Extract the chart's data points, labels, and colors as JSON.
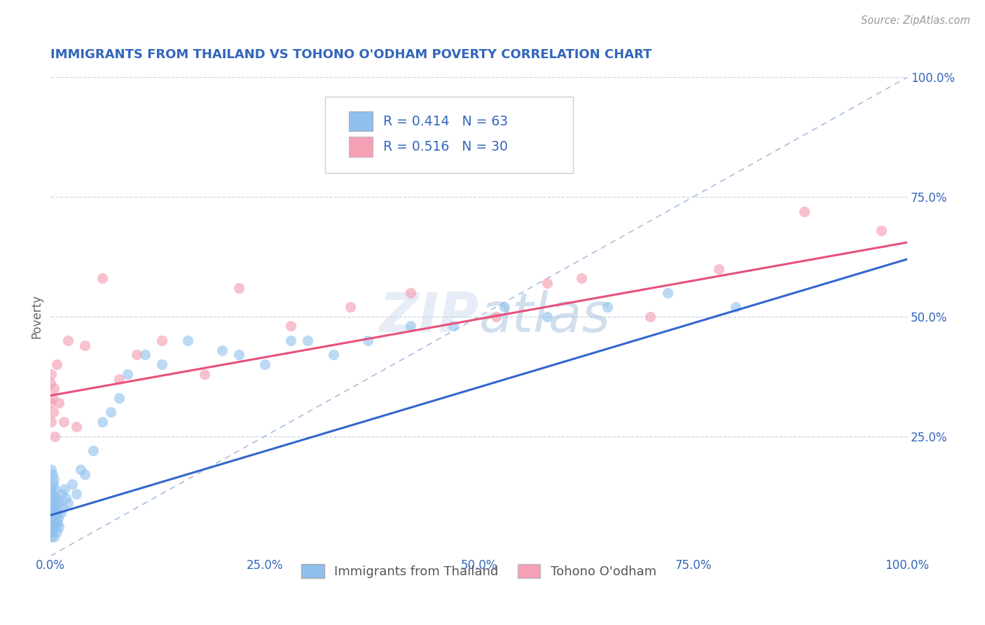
{
  "title": "IMMIGRANTS FROM THAILAND VS TOHONO O'ODHAM POVERTY CORRELATION CHART",
  "source": "Source: ZipAtlas.com",
  "ylabel": "Poverty",
  "xlim": [
    0.0,
    1.0
  ],
  "ylim": [
    0.0,
    1.0
  ],
  "x_tick_labels": [
    "0.0%",
    "25.0%",
    "50.0%",
    "75.0%",
    "100.0%"
  ],
  "x_tick_vals": [
    0.0,
    0.25,
    0.5,
    0.75,
    1.0
  ],
  "y_tick_labels": [
    "25.0%",
    "50.0%",
    "75.0%",
    "100.0%"
  ],
  "y_tick_vals": [
    0.25,
    0.5,
    0.75,
    1.0
  ],
  "legend_label1": "Immigrants from Thailand",
  "legend_label2": "Tohono O'odham",
  "R1": 0.414,
  "N1": 63,
  "R2": 0.516,
  "N2": 30,
  "color1": "#90C0EE",
  "color2": "#F5A0B5",
  "line_color1": "#3366CC",
  "line_color2": "#E8507A",
  "diagonal_color": "#AABEDD",
  "background_color": "#FFFFFF",
  "title_color": "#3366BB",
  "source_color": "#999999",
  "scatter1_x": [
    0.0,
    0.0,
    0.0,
    0.001,
    0.001,
    0.001,
    0.001,
    0.001,
    0.002,
    0.002,
    0.002,
    0.002,
    0.003,
    0.003,
    0.003,
    0.004,
    0.004,
    0.004,
    0.004,
    0.005,
    0.005,
    0.005,
    0.006,
    0.006,
    0.007,
    0.007,
    0.008,
    0.008,
    0.009,
    0.01,
    0.01,
    0.012,
    0.013,
    0.014,
    0.016,
    0.018,
    0.02,
    0.025,
    0.03,
    0.035,
    0.04,
    0.05,
    0.06,
    0.07,
    0.08,
    0.09,
    0.11,
    0.13,
    0.16,
    0.2,
    0.22,
    0.25,
    0.28,
    0.3,
    0.33,
    0.37,
    0.42,
    0.47,
    0.53,
    0.58,
    0.65,
    0.72,
    0.8
  ],
  "scatter1_y": [
    0.05,
    0.08,
    0.12,
    0.04,
    0.07,
    0.1,
    0.14,
    0.18,
    0.05,
    0.09,
    0.13,
    0.17,
    0.06,
    0.1,
    0.15,
    0.04,
    0.08,
    0.12,
    0.16,
    0.06,
    0.1,
    0.14,
    0.07,
    0.11,
    0.05,
    0.09,
    0.07,
    0.12,
    0.08,
    0.06,
    0.11,
    0.09,
    0.13,
    0.1,
    0.14,
    0.12,
    0.11,
    0.15,
    0.13,
    0.18,
    0.17,
    0.22,
    0.28,
    0.3,
    0.33,
    0.38,
    0.42,
    0.4,
    0.45,
    0.43,
    0.42,
    0.4,
    0.45,
    0.45,
    0.42,
    0.45,
    0.48,
    0.48,
    0.52,
    0.5,
    0.52,
    0.55,
    0.52
  ],
  "scatter2_x": [
    0.0,
    0.0,
    0.001,
    0.001,
    0.002,
    0.003,
    0.004,
    0.005,
    0.007,
    0.01,
    0.015,
    0.02,
    0.03,
    0.04,
    0.06,
    0.08,
    0.1,
    0.13,
    0.18,
    0.22,
    0.28,
    0.35,
    0.42,
    0.52,
    0.58,
    0.62,
    0.7,
    0.78,
    0.88,
    0.97
  ],
  "scatter2_y": [
    0.32,
    0.36,
    0.28,
    0.38,
    0.33,
    0.3,
    0.35,
    0.25,
    0.4,
    0.32,
    0.28,
    0.45,
    0.27,
    0.44,
    0.58,
    0.37,
    0.42,
    0.45,
    0.38,
    0.56,
    0.48,
    0.52,
    0.55,
    0.5,
    0.57,
    0.58,
    0.5,
    0.6,
    0.72,
    0.68
  ],
  "line1_x0": 0.0,
  "line1_y0": 0.085,
  "line1_x1": 1.0,
  "line1_y1": 0.62,
  "line2_x0": 0.0,
  "line2_y0": 0.335,
  "line2_x1": 1.0,
  "line2_y1": 0.655
}
